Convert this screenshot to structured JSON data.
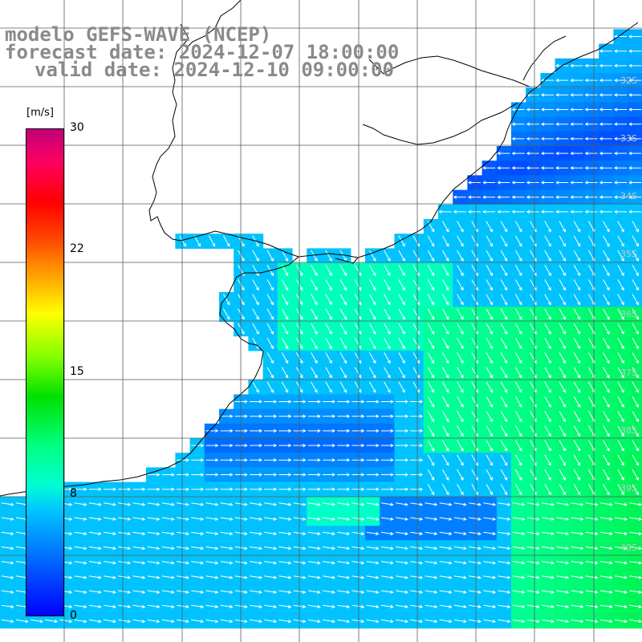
{
  "title": {
    "line1": "modelo GEFS-WAVE (NCEP)",
    "line2": "forecast date: 2024-12-07 18:00:00",
    "line3": "valid date: 2024-12-10 09:00:00"
  },
  "legend": {
    "unit": "[m/s]",
    "ticks": [
      "30",
      "22",
      "15",
      "8",
      "0"
    ],
    "tick_values": [
      30,
      22,
      15,
      8,
      0
    ],
    "range": [
      0,
      30
    ]
  },
  "lat_labels": [
    "32S",
    "33S",
    "34S",
    "35S",
    "36S",
    "37S",
    "38S",
    "39S",
    "40S"
  ],
  "colors": {
    "land": "#ffffff",
    "grid": "#5a5a5a",
    "coast": "#000000",
    "arrow": "#ffffff",
    "title": "#8a8a8a"
  }
}
